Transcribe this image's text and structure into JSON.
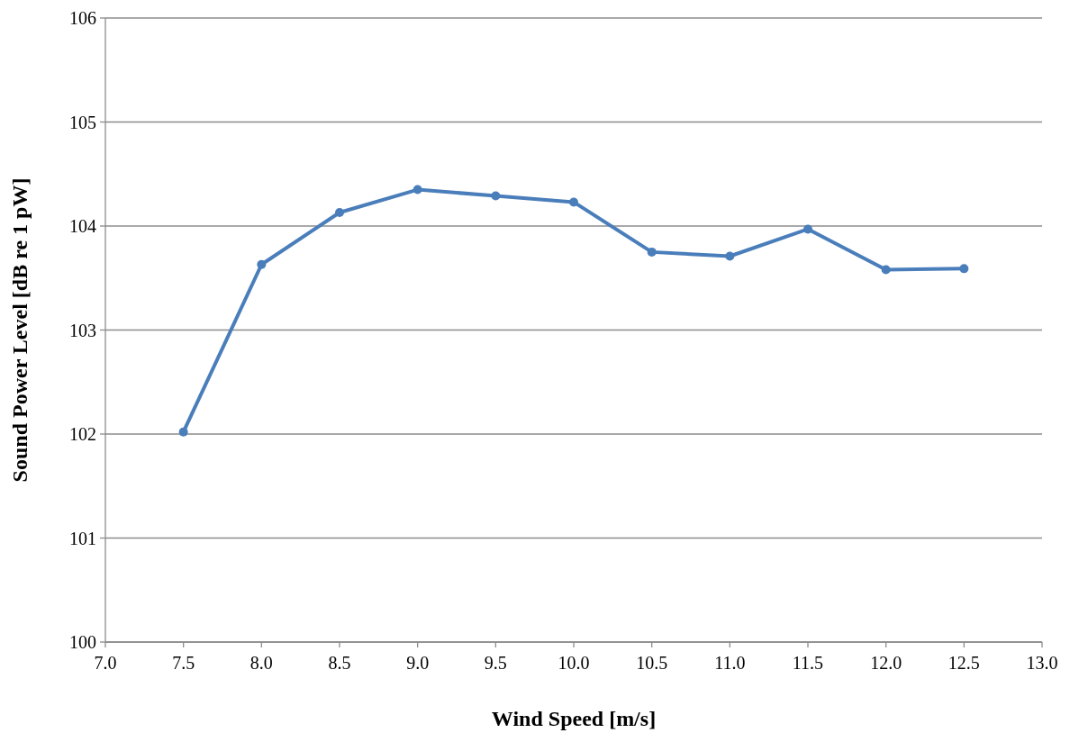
{
  "chart_data": {
    "type": "line",
    "xlabel": "Wind Speed [m/s]",
    "ylabel": "Sound Power Level [dB re 1 pW]",
    "x": [
      7.5,
      8.0,
      8.5,
      9.0,
      9.5,
      10.0,
      10.5,
      11.0,
      11.5,
      12.0,
      12.5
    ],
    "series": [
      {
        "color": "#4a7ebb",
        "values": [
          102.02,
          103.63,
          104.13,
          104.35,
          104.29,
          104.23,
          103.75,
          103.71,
          103.97,
          103.58,
          103.59
        ]
      }
    ],
    "xlim": [
      7,
      13
    ],
    "xticks": [
      {
        "value": 7,
        "label": "7.0"
      },
      {
        "value": 7.5,
        "label": "7.5"
      },
      {
        "value": 8,
        "label": "8.0"
      },
      {
        "value": 8.5,
        "label": "8.5"
      },
      {
        "value": 9,
        "label": "9.0"
      },
      {
        "value": 9.5,
        "label": "9.5"
      },
      {
        "value": 10,
        "label": "10.0"
      },
      {
        "value": 10.5,
        "label": "10.5"
      },
      {
        "value": 11,
        "label": "11.0"
      },
      {
        "value": 11.5,
        "label": "11.5"
      },
      {
        "value": 12,
        "label": "12.0"
      },
      {
        "value": 12.5,
        "label": "12.5"
      },
      {
        "value": 13,
        "label": "13.0"
      }
    ],
    "ylim": [
      100,
      106
    ],
    "yticks": [
      100,
      101,
      102,
      103,
      104,
      105,
      106
    ],
    "grid": "y",
    "marker": "circle",
    "line_style": "solid"
  }
}
